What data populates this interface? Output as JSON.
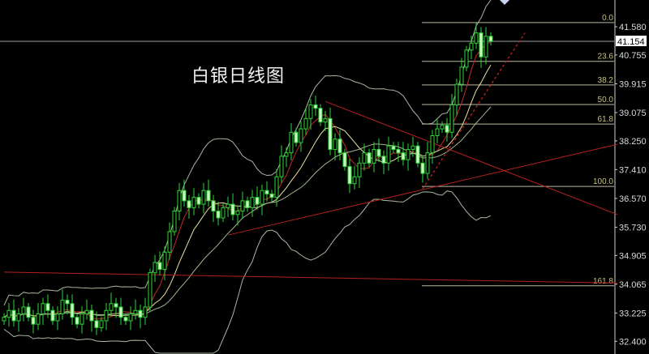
{
  "chart_data": {
    "type": "candlestick",
    "title": "白银日线图",
    "ylim": [
      32.2,
      42.3
    ],
    "grid": false,
    "y_ticks": [
      "41.580",
      "40.755",
      "39.915",
      "39.075",
      "38.250",
      "37.410",
      "36.570",
      "35.730",
      "34.905",
      "34.065",
      "33.225",
      "32.400"
    ],
    "current_price": "41.154",
    "closes": [
      33.1,
      33.3,
      33.0,
      33.2,
      33.4,
      33.1,
      32.9,
      33.2,
      33.5,
      33.3,
      33.0,
      33.2,
      33.6,
      33.5,
      33.1,
      32.9,
      33.2,
      33.3,
      33.0,
      32.8,
      33.0,
      33.3,
      33.5,
      33.4,
      33.1,
      33.0,
      33.2,
      33.3,
      33.1,
      33.4,
      34.4,
      34.7,
      34.5,
      35.0,
      35.6,
      36.2,
      36.8,
      36.5,
      36.3,
      36.6,
      36.4,
      36.8,
      36.5,
      36.2,
      36.0,
      36.3,
      36.4,
      36.1,
      36.2,
      36.5,
      36.3,
      36.6,
      36.4,
      36.8,
      36.7,
      36.6,
      37.2,
      37.8,
      37.9,
      38.5,
      38.2,
      38.6,
      38.9,
      39.3,
      39.2,
      38.8,
      38.9,
      38.0,
      38.3,
      37.9,
      37.5,
      37.0,
      37.2,
      37.6,
      37.9,
      37.6,
      38.0,
      37.8,
      37.6,
      38.1,
      38.0,
      37.9,
      37.7,
      38.0,
      38.1,
      37.6,
      37.3,
      37.9,
      38.4,
      38.6,
      38.7,
      38.5,
      39.3,
      39.9,
      40.4,
      40.9,
      41.1,
      41.4,
      40.7,
      41.3,
      41.15
    ],
    "moving_averages": [
      {
        "period": 5,
        "color": "#c0282a"
      },
      {
        "period": 10,
        "color": "#e8e0a0"
      },
      {
        "period": 20,
        "color": "#9fb88f"
      }
    ],
    "bollinger": {
      "period": 20,
      "std": 2,
      "color": "#a8b8a0"
    },
    "fibonacci": {
      "color": "#c9c27a",
      "levels": [
        {
          "label": "0.0",
          "price": 41.7
        },
        {
          "label": "23.6",
          "price": 40.57
        },
        {
          "label": "38.2",
          "price": 39.88
        },
        {
          "label": "50.0",
          "price": 39.31
        },
        {
          "label": "61.8",
          "price": 38.74
        },
        {
          "label": "100.0",
          "price": 36.92
        },
        {
          "label": "161.8",
          "price": 34.02
        }
      ]
    },
    "trendlines": {
      "color": "#b3201f",
      "lines": [
        {
          "from": [
            46,
            35.5
          ],
          "to": [
            126,
            38.15
          ]
        },
        {
          "from": [
            66,
            39.4
          ],
          "to": [
            126,
            36.1
          ]
        },
        {
          "from": [
            0,
            34.42
          ],
          "to": [
            126,
            34.1
          ]
        }
      ],
      "dotted": {
        "from": [
          86,
          36.85
        ],
        "to": [
          107,
          41.4
        ]
      }
    },
    "colors": {
      "bull": "#2fd43a",
      "bear_fill": "#c8f8c0",
      "background": "#000000"
    }
  }
}
